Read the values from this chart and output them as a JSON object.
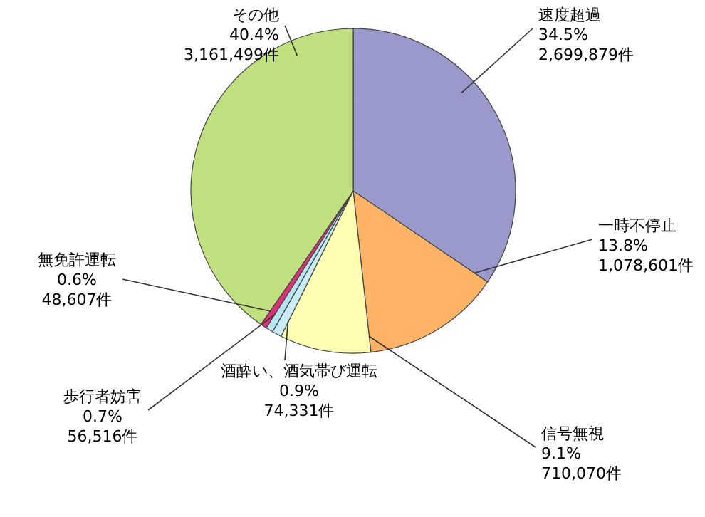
{
  "chart_data": {
    "type": "pie",
    "categories": [
      "速度超過",
      "一時不停止",
      "信号無視",
      "酒酔い、酒気帯び運転",
      "歩行者妨害",
      "無免許運転",
      "その他"
    ],
    "values": [
      2699879,
      1078601,
      710070,
      74331,
      56516,
      48607,
      3161499
    ],
    "value_labels": [
      "34.5%\n2,699,879件",
      "13.8%\n1,078,601件",
      "9.1%\n710,070件",
      "0.9%\n74,331件",
      "0.7%\n56,516件",
      "0.6%\n48,607件",
      "40.4%\n3,161,499件"
    ],
    "colors": [
      "#9999cc",
      "#ffb366",
      "#ffffb3",
      "#c8ecf8",
      "#b3e6f0",
      "#e0307a",
      "#c0e080"
    ]
  }
}
